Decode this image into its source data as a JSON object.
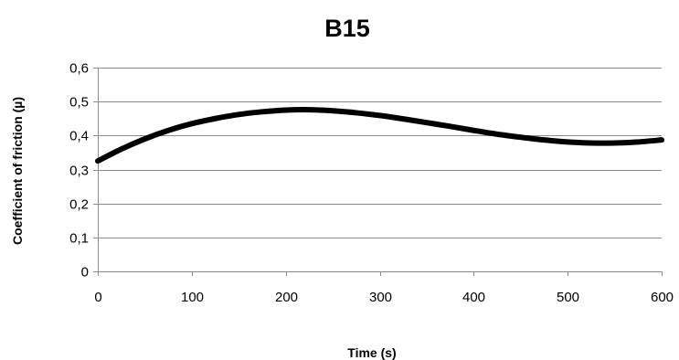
{
  "chart_data": {
    "type": "line",
    "title": "B15",
    "xlabel": "Time (s)",
    "ylabel": "Coefficient of friction (µ)",
    "xlim": [
      0,
      600
    ],
    "ylim": [
      0,
      0.6
    ],
    "x_ticks": [
      0,
      100,
      200,
      300,
      400,
      500,
      600
    ],
    "x_tick_labels": [
      "0",
      "100",
      "200",
      "300",
      "400",
      "500",
      "600"
    ],
    "y_ticks": [
      0,
      0.1,
      0.2,
      0.3,
      0.4,
      0.5,
      0.6
    ],
    "y_tick_labels": [
      "0",
      "0,1",
      "0,2",
      "0,3",
      "0,4",
      "0,5",
      "0,6"
    ],
    "grid": "horizontal",
    "legend": "none",
    "series": [
      {
        "color": "#000000",
        "x": [
          0,
          25,
          50,
          75,
          100,
          125,
          150,
          175,
          200,
          225,
          250,
          275,
          300,
          325,
          350,
          375,
          400,
          425,
          450,
          475,
          500,
          525,
          550,
          575,
          600
        ],
        "y": [
          0.325,
          0.36,
          0.39,
          0.415,
          0.435,
          0.45,
          0.462,
          0.47,
          0.475,
          0.476,
          0.473,
          0.467,
          0.459,
          0.449,
          0.438,
          0.427,
          0.415,
          0.404,
          0.395,
          0.387,
          0.381,
          0.378,
          0.378,
          0.381,
          0.387
        ]
      }
    ]
  }
}
